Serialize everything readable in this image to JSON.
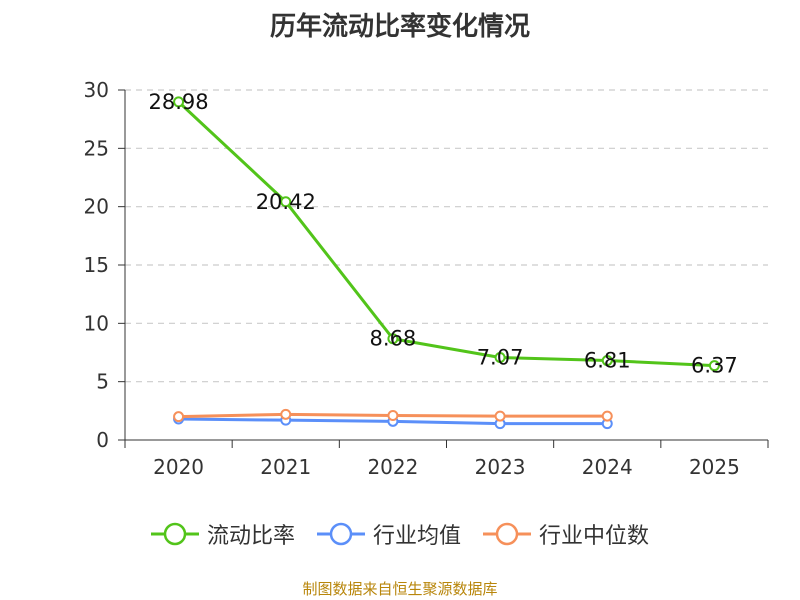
{
  "chart_data": {
    "type": "line",
    "title": "历年流动比率变化情况",
    "categories": [
      "2020",
      "2021",
      "2022",
      "2023",
      "2024",
      "2025"
    ],
    "ylim": [
      0,
      30
    ],
    "yticks": [
      0,
      5,
      10,
      15,
      20,
      25,
      30
    ],
    "grid": true,
    "legend_position": "bottom",
    "series": [
      {
        "name": "流动比率",
        "color": "#52c41a",
        "values": [
          28.98,
          20.42,
          8.68,
          7.07,
          6.81,
          6.37
        ],
        "labels": true
      },
      {
        "name": "行业均值",
        "color": "#5b8ff9",
        "values": [
          1.8,
          1.7,
          1.6,
          1.4,
          1.4,
          null
        ],
        "labels": false
      },
      {
        "name": "行业中位数",
        "color": "#f6905a",
        "values": [
          2.0,
          2.2,
          2.1,
          2.05,
          2.05,
          null
        ],
        "labels": false
      }
    ]
  },
  "source_text": "制图数据来自恒生聚源数据库"
}
